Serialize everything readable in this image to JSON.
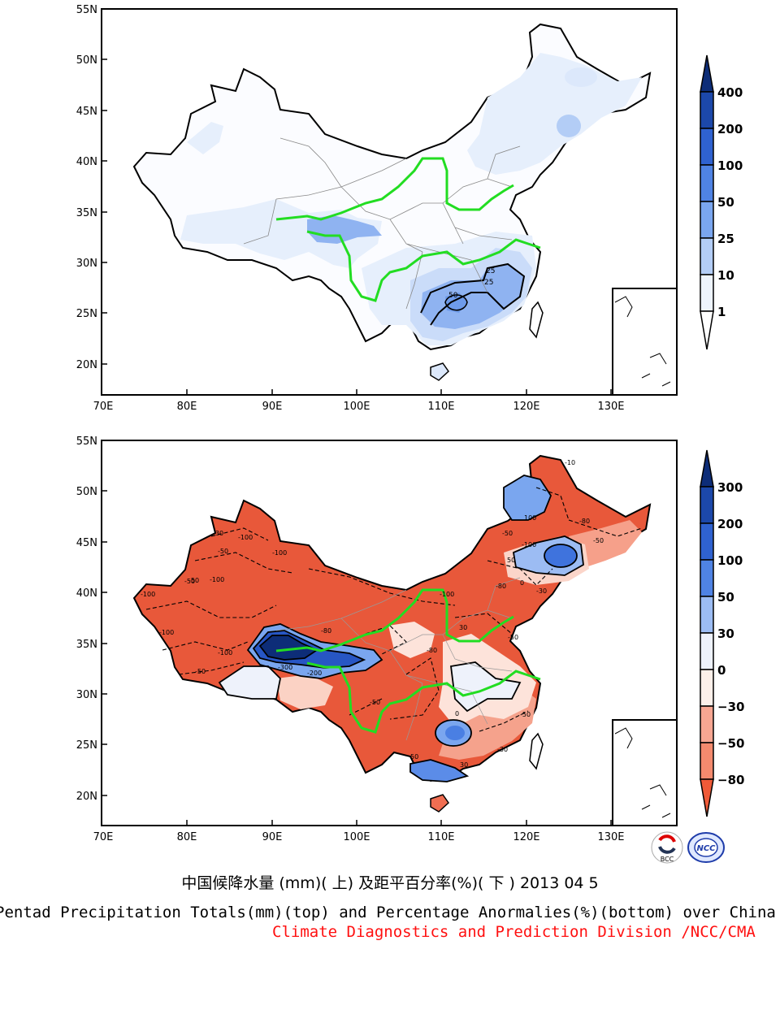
{
  "top_map": {
    "lat_labels": [
      "55N",
      "50N",
      "45N",
      "40N",
      "35N",
      "30N",
      "25N",
      "20N"
    ],
    "lon_labels": [
      "70E",
      "80E",
      "90E",
      "100E",
      "110E",
      "120E",
      "130E"
    ],
    "legend": {
      "levels": [
        "400",
        "200",
        "100",
        "50",
        "25",
        "10",
        "1"
      ]
    },
    "contour_labels": [
      "25",
      "25",
      "50"
    ]
  },
  "bottom_map": {
    "lat_labels": [
      "55N",
      "50N",
      "45N",
      "40N",
      "35N",
      "30N",
      "25N",
      "20N"
    ],
    "lon_labels": [
      "70E",
      "80E",
      "90E",
      "100E",
      "110E",
      "120E",
      "130E"
    ],
    "legend": {
      "levels": [
        "300",
        "200",
        "100",
        "50",
        "30",
        "0",
        "−30",
        "−50",
        "−80"
      ]
    },
    "contour_labels": [
      "-100",
      "-50",
      "-100",
      "-50",
      "-100",
      "-50",
      "-100",
      "-100",
      "-300",
      "-200",
      "-80",
      "-50",
      "30",
      "-50",
      "-80",
      "-30",
      "-50",
      "-100",
      "0",
      "50",
      "30",
      "-50",
      "-80",
      "-100",
      "-50",
      "-80",
      "-30",
      "0",
      "50",
      "100",
      "-30",
      "-50",
      "-100",
      "-10"
    ]
  },
  "captions": {
    "chinese": "中国候降水量 (mm)( 上) 及距平百分率(%)( 下 ) 2013 04 5",
    "english": "Pentad Precipitation Totals(mm)(top) and Percentage Anormalies(%)(bottom) over China",
    "division": "Climate Diagnostics and Prediction Division /NCC/CMA"
  },
  "logos": {
    "bcc": "BCC",
    "ncc": "NCC"
  },
  "colors": {
    "blue_1": "#eef4fd",
    "blue_10": "#dce8fb",
    "blue_25": "#b3cdf6",
    "blue_50": "#7aa6ef",
    "blue_100": "#4a7fe3",
    "blue_200": "#2756c4",
    "blue_400": "#0d2d78",
    "red_30": "#fde6de",
    "red_50": "#f8a692",
    "red_80": "#f06e52",
    "red_100": "#e55a3c",
    "river": "#22dd22"
  }
}
